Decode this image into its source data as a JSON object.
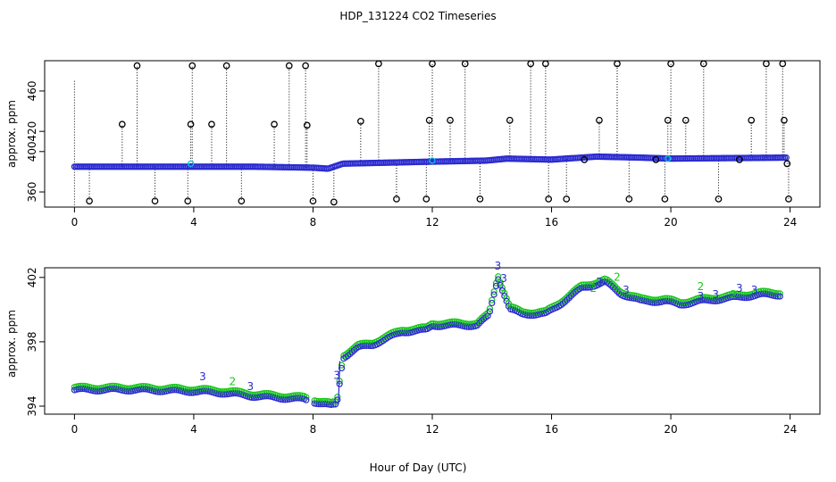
{
  "title": "HDP_131224  CO2 Timeseries",
  "xlabel": "Hour of Day (UTC)",
  "colors": {
    "outlier": "#000000",
    "blue": "#2b2bd0",
    "cyan": "#00c8e0",
    "green": "#19c819"
  },
  "chart_data": [
    {
      "type": "scatter",
      "title": "HDP_131224  CO2 Timeseries",
      "ylabel": "approx. ppm",
      "xlim": [
        -1,
        25
      ],
      "ylim": [
        345,
        490
      ],
      "xticks": [
        "0",
        "4",
        "8",
        "12",
        "16",
        "20",
        "24"
      ],
      "yticks": [
        "360",
        "400",
        "420",
        "460"
      ],
      "series": [
        {
          "name": "baseline",
          "marker": "circle-blue",
          "segments": [
            [
              0,
              385
            ],
            [
              6,
              385
            ],
            [
              8,
              384
            ],
            [
              8.5,
              383
            ],
            [
              9,
              388
            ],
            [
              12,
              390
            ],
            [
              13.8,
              391
            ],
            [
              14.5,
              393
            ],
            [
              16,
              392
            ],
            [
              17.5,
              395
            ],
            [
              19,
              394
            ],
            [
              20,
              393
            ],
            [
              23.9,
              394
            ]
          ]
        },
        {
          "name": "outliers",
          "marker": "circle-black",
          "points": [
            [
              0.5,
              351
            ],
            [
              1.6,
              427
            ],
            [
              2.1,
              485
            ],
            [
              2.7,
              351
            ],
            [
              3.8,
              351
            ],
            [
              3.9,
              427
            ],
            [
              3.95,
              485
            ],
            [
              4.6,
              427
            ],
            [
              5.1,
              485
            ],
            [
              5.6,
              351
            ],
            [
              6.7,
              427
            ],
            [
              7.2,
              485
            ],
            [
              7.75,
              485
            ],
            [
              7.8,
              426
            ],
            [
              8.0,
              351
            ],
            [
              8.7,
              350
            ],
            [
              9.6,
              430
            ],
            [
              10.2,
              487
            ],
            [
              10.8,
              353
            ],
            [
              11.8,
              353
            ],
            [
              11.9,
              431
            ],
            [
              12.0,
              487
            ],
            [
              12.6,
              431
            ],
            [
              13.1,
              487
            ],
            [
              13.6,
              353
            ],
            [
              14.6,
              431
            ],
            [
              15.3,
              487
            ],
            [
              15.8,
              487
            ],
            [
              15.9,
              353
            ],
            [
              16.5,
              353
            ],
            [
              17.1,
              392
            ],
            [
              17.6,
              431
            ],
            [
              18.2,
              487
            ],
            [
              18.6,
              353
            ],
            [
              19.5,
              392
            ],
            [
              19.8,
              353
            ],
            [
              19.9,
              431
            ],
            [
              20.0,
              487
            ],
            [
              20.5,
              431
            ],
            [
              21.1,
              487
            ],
            [
              21.6,
              353
            ],
            [
              22.3,
              392
            ],
            [
              22.7,
              431
            ],
            [
              23.2,
              487
            ],
            [
              23.75,
              487
            ],
            [
              23.8,
              431
            ],
            [
              23.9,
              388
            ],
            [
              23.95,
              353
            ]
          ]
        },
        {
          "name": "cyan-markers",
          "marker": "circle-cyan",
          "points": [
            [
              3.9,
              388
            ],
            [
              12.0,
              391
            ],
            [
              19.9,
              393
            ]
          ]
        }
      ]
    },
    {
      "type": "scatter",
      "ylabel": "approx. ppm",
      "xlim": [
        -1,
        25
      ],
      "ylim": [
        393.5,
        402.6
      ],
      "xticks": [
        "0",
        "4",
        "8",
        "12",
        "16",
        "20",
        "24"
      ],
      "yticks": [
        "394",
        "398",
        "402"
      ],
      "series": [
        {
          "name": "blue-circles",
          "marker": "circle-blue",
          "profile": [
            [
              0,
              395.0
            ],
            [
              2,
              395.0
            ],
            [
              4,
              394.9
            ],
            [
              5,
              394.8
            ],
            [
              6,
              394.6
            ],
            [
              7.7,
              394.4
            ],
            [
              8.6,
              394.0
            ],
            [
              8.8,
              394.1
            ],
            [
              9.0,
              397.0
            ],
            [
              9.5,
              397.6
            ],
            [
              10.0,
              397.8
            ],
            [
              11.0,
              398.6
            ],
            [
              11.8,
              398.7
            ],
            [
              12.0,
              399.0
            ],
            [
              13.5,
              399.0
            ],
            [
              13.9,
              399.6
            ],
            [
              14.2,
              402.0
            ],
            [
              14.6,
              400.0
            ],
            [
              15.0,
              399.7
            ],
            [
              15.8,
              399.7
            ],
            [
              16.2,
              400.2
            ],
            [
              17.0,
              401.3
            ],
            [
              17.8,
              401.7
            ],
            [
              18.3,
              401.0
            ],
            [
              19.0,
              400.5
            ],
            [
              19.8,
              400.5
            ],
            [
              20.3,
              400.3
            ],
            [
              21.0,
              400.5
            ],
            [
              22.0,
              400.7
            ],
            [
              23.0,
              400.9
            ],
            [
              23.7,
              400.9
            ]
          ]
        },
        {
          "name": "green-circles",
          "marker": "circle-green",
          "offset": 0.18
        },
        {
          "name": "labels-3",
          "marker": "text-3",
          "points": [
            [
              4.3,
              395.6
            ],
            [
              5.9,
              395.0
            ],
            [
              8.8,
              395.7
            ],
            [
              14.2,
              402.5
            ],
            [
              14.4,
              401.7
            ],
            [
              17.6,
              401.5
            ],
            [
              18.5,
              401.0
            ],
            [
              21.0,
              400.6
            ],
            [
              21.5,
              400.7
            ],
            [
              22.3,
              401.1
            ],
            [
              22.8,
              401.0
            ]
          ]
        },
        {
          "name": "labels-2",
          "marker": "text-2",
          "points": [
            [
              5.3,
              395.3
            ],
            [
              17.4,
              401.1
            ],
            [
              18.2,
              401.8
            ],
            [
              21.0,
              401.2
            ],
            [
              22.1,
              400.7
            ]
          ]
        }
      ]
    }
  ]
}
